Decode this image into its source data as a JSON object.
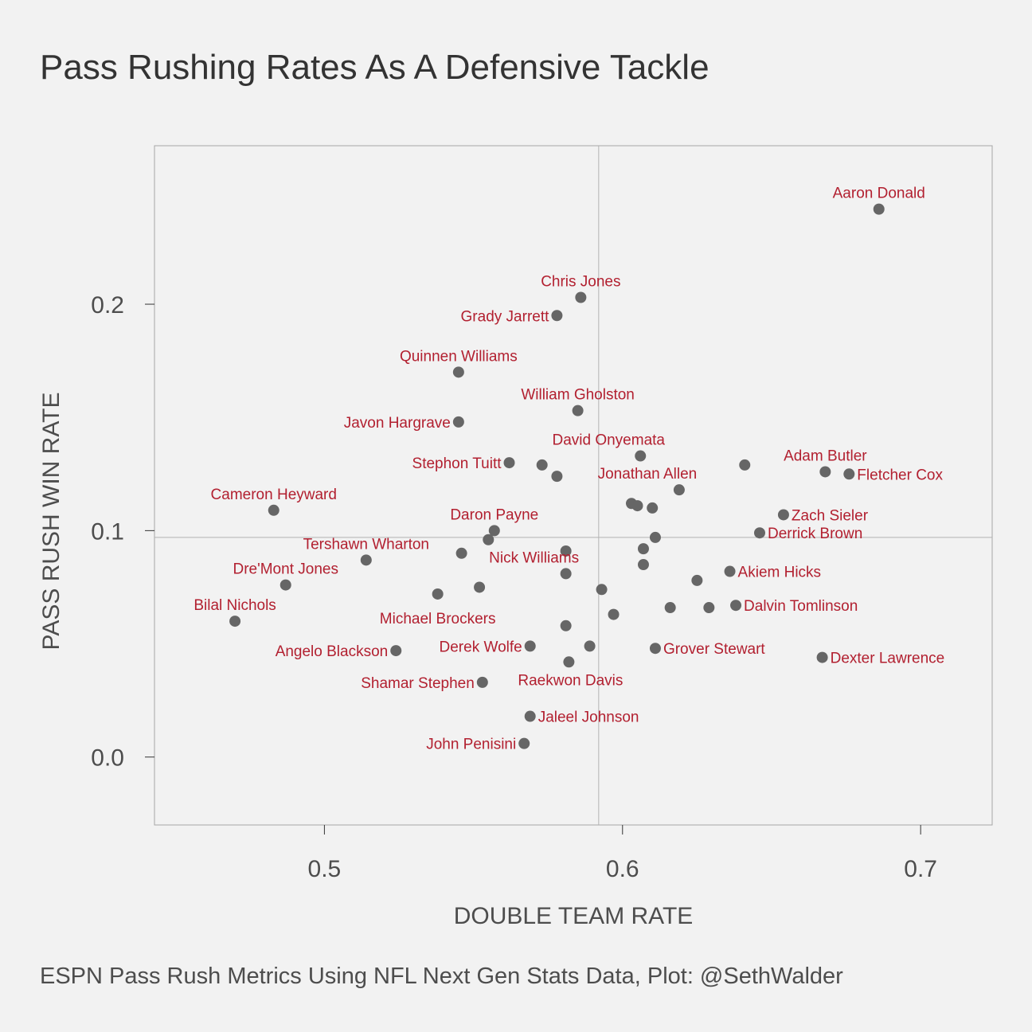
{
  "title": "Pass Rushing Rates As A Defensive Tackle",
  "caption": "ESPN Pass Rush Metrics Using NFL Next Gen Stats Data, Plot: @SethWalder",
  "colors": {
    "background": "#f2f2f2",
    "point": "#666666",
    "label": "#b22030",
    "reference_line": "#b3b3b3",
    "panel_border": "#a6a6a6"
  },
  "chart_data": {
    "type": "scatter",
    "title": "Pass Rushing Rates As A Defensive Tackle",
    "xlabel": "DOUBLE TEAM RATE",
    "ylabel": "PASS RUSH WIN RATE",
    "xlim": [
      0.443,
      0.724
    ],
    "ylim": [
      -0.03,
      0.27
    ],
    "xticks": [
      0.5,
      0.6,
      0.7
    ],
    "xtick_labels": [
      "0.5",
      "0.6",
      "0.7"
    ],
    "yticks": [
      0.0,
      0.1,
      0.2
    ],
    "ytick_labels": [
      "0.0",
      "0.1",
      "0.2"
    ],
    "grid": false,
    "reference_lines": {
      "x": 0.592,
      "y": 0.097
    },
    "points": [
      {
        "x": 0.686,
        "y": 0.242,
        "label": "Aaron Donald",
        "pos": "above"
      },
      {
        "x": 0.586,
        "y": 0.203,
        "label": "Chris Jones",
        "pos": "above"
      },
      {
        "x": 0.578,
        "y": 0.195,
        "label": "Grady Jarrett",
        "pos": "left"
      },
      {
        "x": 0.545,
        "y": 0.17,
        "label": "Quinnen Williams",
        "pos": "above"
      },
      {
        "x": 0.585,
        "y": 0.153,
        "label": "William Gholston",
        "pos": "above"
      },
      {
        "x": 0.545,
        "y": 0.148,
        "label": "Javon Hargrave",
        "pos": "left"
      },
      {
        "x": 0.606,
        "y": 0.133,
        "label": "David Onyemata",
        "pos": "aboveleft"
      },
      {
        "x": 0.562,
        "y": 0.13,
        "label": "Stephon Tuitt",
        "pos": "left"
      },
      {
        "x": 0.573,
        "y": 0.129,
        "label": ""
      },
      {
        "x": 0.578,
        "y": 0.124,
        "label": ""
      },
      {
        "x": 0.641,
        "y": 0.129,
        "label": ""
      },
      {
        "x": 0.668,
        "y": 0.126,
        "label": "Adam Butler",
        "pos": "above"
      },
      {
        "x": 0.676,
        "y": 0.125,
        "label": "Fletcher Cox",
        "pos": "right"
      },
      {
        "x": 0.619,
        "y": 0.118,
        "label": "Jonathan Allen",
        "pos": "aboveleft"
      },
      {
        "x": 0.603,
        "y": 0.112,
        "label": ""
      },
      {
        "x": 0.605,
        "y": 0.111,
        "label": ""
      },
      {
        "x": 0.61,
        "y": 0.11,
        "label": ""
      },
      {
        "x": 0.483,
        "y": 0.109,
        "label": "Cameron Heyward",
        "pos": "above"
      },
      {
        "x": 0.654,
        "y": 0.107,
        "label": "Zach Sieler",
        "pos": "right"
      },
      {
        "x": 0.557,
        "y": 0.1,
        "label": "Daron Payne",
        "pos": "above"
      },
      {
        "x": 0.646,
        "y": 0.099,
        "label": "Derrick Brown",
        "pos": "right"
      },
      {
        "x": 0.555,
        "y": 0.096,
        "label": ""
      },
      {
        "x": 0.611,
        "y": 0.097,
        "label": ""
      },
      {
        "x": 0.607,
        "y": 0.092,
        "label": ""
      },
      {
        "x": 0.581,
        "y": 0.091,
        "label": ""
      },
      {
        "x": 0.546,
        "y": 0.09,
        "label": ""
      },
      {
        "x": 0.514,
        "y": 0.087,
        "label": "Tershawn Wharton",
        "pos": "above"
      },
      {
        "x": 0.607,
        "y": 0.085,
        "label": ""
      },
      {
        "x": 0.636,
        "y": 0.082,
        "label": "Akiem Hicks",
        "pos": "right"
      },
      {
        "x": 0.581,
        "y": 0.081,
        "label": "Nick Williams",
        "pos": "aboveleft"
      },
      {
        "x": 0.625,
        "y": 0.078,
        "label": ""
      },
      {
        "x": 0.487,
        "y": 0.076,
        "label": "Dre'Mont Jones",
        "pos": "above"
      },
      {
        "x": 0.552,
        "y": 0.075,
        "label": ""
      },
      {
        "x": 0.593,
        "y": 0.074,
        "label": ""
      },
      {
        "x": 0.538,
        "y": 0.072,
        "label": "Michael Brockers",
        "pos": "below"
      },
      {
        "x": 0.638,
        "y": 0.067,
        "label": "Dalvin Tomlinson",
        "pos": "right"
      },
      {
        "x": 0.616,
        "y": 0.066,
        "label": ""
      },
      {
        "x": 0.629,
        "y": 0.066,
        "label": ""
      },
      {
        "x": 0.597,
        "y": 0.063,
        "label": ""
      },
      {
        "x": 0.47,
        "y": 0.06,
        "label": "Bilal Nichols",
        "pos": "above"
      },
      {
        "x": 0.581,
        "y": 0.058,
        "label": ""
      },
      {
        "x": 0.569,
        "y": 0.049,
        "label": "Derek Wolfe",
        "pos": "left"
      },
      {
        "x": 0.589,
        "y": 0.049,
        "label": ""
      },
      {
        "x": 0.611,
        "y": 0.048,
        "label": "Grover Stewart",
        "pos": "right"
      },
      {
        "x": 0.524,
        "y": 0.047,
        "label": "Angelo Blackson",
        "pos": "left"
      },
      {
        "x": 0.667,
        "y": 0.044,
        "label": "Dexter Lawrence",
        "pos": "right"
      },
      {
        "x": 0.582,
        "y": 0.042,
        "label": "Raekwon Davis",
        "pos": "belowright"
      },
      {
        "x": 0.553,
        "y": 0.033,
        "label": "Shamar Stephen",
        "pos": "left"
      },
      {
        "x": 0.569,
        "y": 0.018,
        "label": "Jaleel Johnson",
        "pos": "right"
      },
      {
        "x": 0.567,
        "y": 0.006,
        "label": "John Penisini",
        "pos": "left"
      }
    ]
  }
}
